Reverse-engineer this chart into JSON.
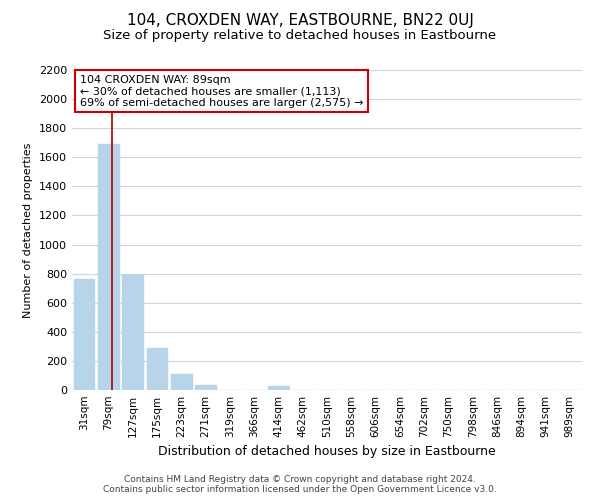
{
  "title": "104, CROXDEN WAY, EASTBOURNE, BN22 0UJ",
  "subtitle": "Size of property relative to detached houses in Eastbourne",
  "xlabel": "Distribution of detached houses by size in Eastbourne",
  "ylabel": "Number of detached properties",
  "footer_line1": "Contains HM Land Registry data © Crown copyright and database right 2024.",
  "footer_line2": "Contains public sector information licensed under the Open Government Licence v3.0.",
  "bar_labels": [
    "31sqm",
    "79sqm",
    "127sqm",
    "175sqm",
    "223sqm",
    "271sqm",
    "319sqm",
    "366sqm",
    "414sqm",
    "462sqm",
    "510sqm",
    "558sqm",
    "606sqm",
    "654sqm",
    "702sqm",
    "750sqm",
    "798sqm",
    "846sqm",
    "894sqm",
    "941sqm",
    "989sqm"
  ],
  "bar_values": [
    760,
    1690,
    790,
    290,
    110,
    35,
    0,
    0,
    25,
    0,
    0,
    0,
    0,
    0,
    0,
    0,
    0,
    0,
    0,
    0,
    0
  ],
  "bar_color": "#b8d4e8",
  "bar_edgecolor": "#b8d4e8",
  "red_line_x": 1.15,
  "ann_line1": "104 CROXDEN WAY: 89sqm",
  "ann_line2": "← 30% of detached houses are smaller (1,113)",
  "ann_line3": "69% of semi-detached houses are larger (2,575) →",
  "ylim": [
    0,
    2200
  ],
  "yticks": [
    0,
    200,
    400,
    600,
    800,
    1000,
    1200,
    1400,
    1600,
    1800,
    2000,
    2200
  ],
  "red_line_color": "#aa0000",
  "background_color": "#ffffff",
  "grid_color": "#c8d8e8",
  "title_fontsize": 11,
  "subtitle_fontsize": 9.5,
  "tick_fontsize": 7.5,
  "ytick_fontsize": 8,
  "ylabel_fontsize": 8,
  "xlabel_fontsize": 9
}
